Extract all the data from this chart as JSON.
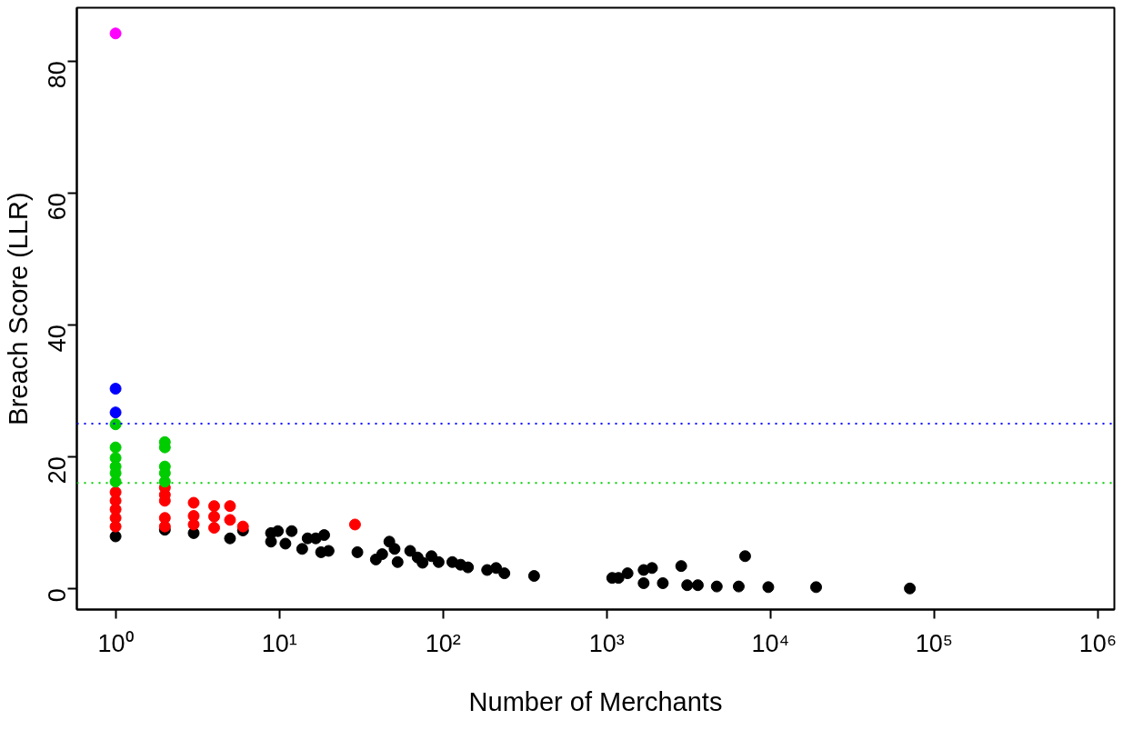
{
  "chart_data": {
    "type": "scatter",
    "xlabel": "Number of Merchants",
    "ylabel": "Breach Score (LLR)",
    "log": "x",
    "xlim": [
      0.58,
      1260000
    ],
    "ylim": [
      -3.2,
      88.1
    ],
    "xticks": [
      {
        "value": 1,
        "label": "10⁰"
      },
      {
        "value": 10,
        "label": "10¹"
      },
      {
        "value": 100,
        "label": "10²"
      },
      {
        "value": 1000,
        "label": "10³"
      },
      {
        "value": 10000,
        "label": "10⁴"
      },
      {
        "value": 100000,
        "label": "10⁵"
      },
      {
        "value": 1000000,
        "label": "10⁶"
      }
    ],
    "yticks": [
      0,
      20,
      40,
      60,
      80
    ],
    "grid": false,
    "marker": "circle",
    "series": [
      {
        "color": "#000000",
        "x": [
          1,
          2,
          3,
          5,
          6,
          8.9,
          8.9,
          9.8,
          10.9,
          11.9,
          13.8,
          14.9,
          16.7,
          18,
          18.8,
          20,
          30,
          38.9,
          42.5,
          47,
          50.6,
          52.8,
          63,
          70,
          75,
          85,
          94,
          114,
          128,
          142,
          186,
          211,
          237,
          360,
          1080,
          1180,
          1340,
          1680,
          1680,
          1890,
          2200,
          2850,
          3100,
          3600,
          4700,
          6400,
          7000,
          9700,
          19000,
          71000
        ],
        "values": [
          7.9,
          8.9,
          8.4,
          7.6,
          8.8,
          8.4,
          7.1,
          8.7,
          6.8,
          8.7,
          6,
          7.6,
          7.6,
          5.5,
          8.1,
          5.7,
          5.5,
          4.4,
          5.2,
          7.1,
          6,
          4,
          5.7,
          4.7,
          3.9,
          4.9,
          4,
          4,
          3.6,
          3.2,
          2.8,
          3.1,
          2.3,
          1.9,
          1.6,
          1.6,
          2.3,
          2.8,
          0.8,
          3.1,
          0.8,
          3.4,
          0.5,
          0.5,
          0.3,
          0.3,
          4.9,
          0.2,
          0.2,
          0
        ]
      },
      {
        "color": "#ff0000",
        "x": [
          1,
          1,
          1,
          1,
          1,
          2,
          2,
          2,
          2,
          2,
          3,
          3,
          3,
          4,
          4,
          4,
          5,
          5,
          6,
          29
        ],
        "values": [
          14.6,
          13.3,
          12,
          10.7,
          9.4,
          15.3,
          14.2,
          13.3,
          10.7,
          9.4,
          13,
          11,
          9.7,
          12.5,
          10.9,
          9.2,
          12.5,
          10.4,
          9.4,
          9.7
        ]
      },
      {
        "color": "#00cd00",
        "x": [
          1,
          1,
          1,
          1,
          1,
          1,
          2,
          2,
          2,
          2,
          2
        ],
        "values": [
          24.9,
          21.4,
          19.8,
          18.5,
          17.5,
          16.2,
          22.2,
          21.4,
          18.5,
          17.5,
          16.2
        ]
      },
      {
        "color": "#0000ff",
        "x": [
          1,
          1
        ],
        "values": [
          30.3,
          26.7
        ]
      },
      {
        "color": "#ff00ff",
        "x": [
          1
        ],
        "values": [
          84.2
        ]
      }
    ],
    "ref_lines": [
      {
        "axis": "y",
        "value": 25,
        "color": "#0000ff",
        "line_style": "dotted"
      },
      {
        "axis": "y",
        "value": 16,
        "color": "#00cd00",
        "line_style": "dotted"
      }
    ]
  }
}
